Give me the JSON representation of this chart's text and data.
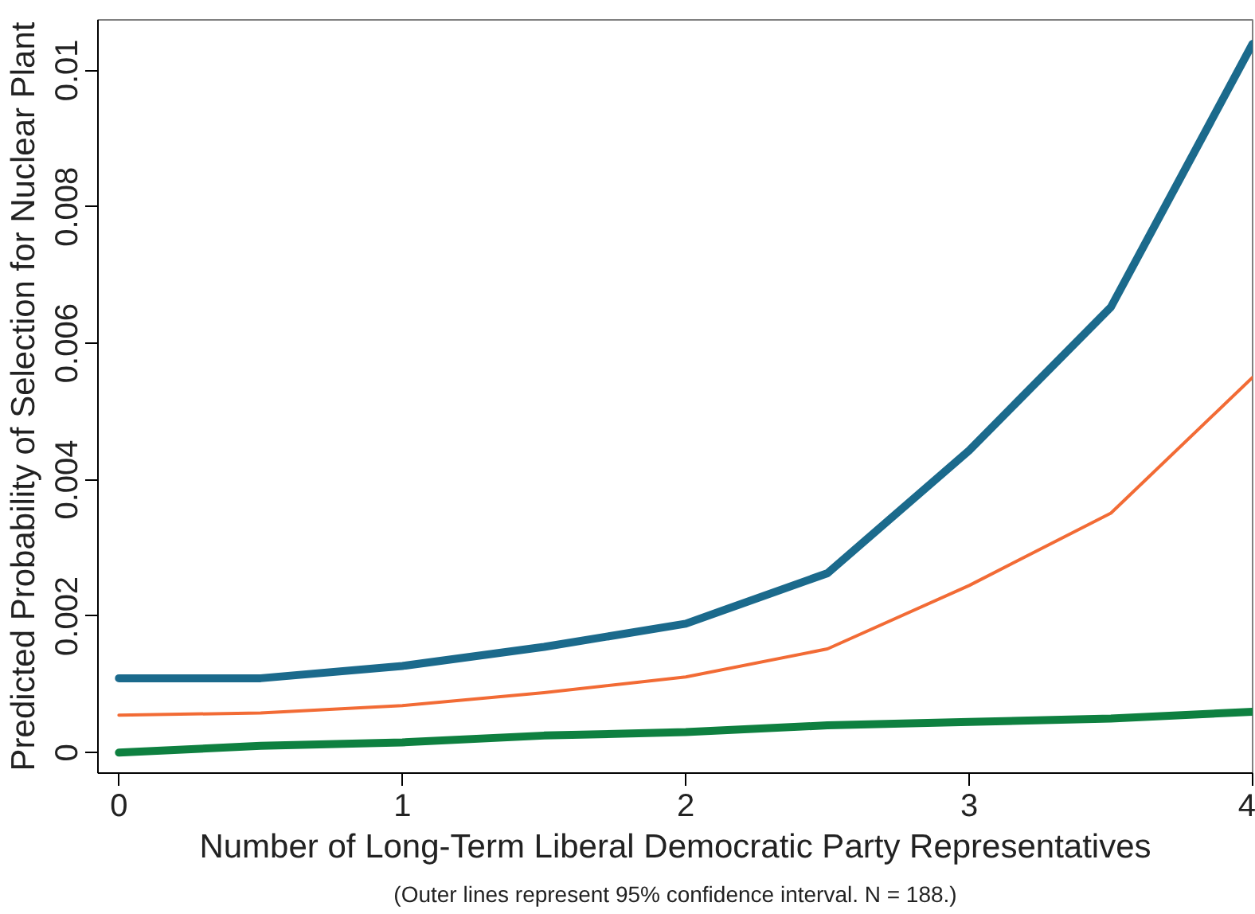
{
  "chart_data": {
    "type": "line",
    "xlabel": "Number of Long-Term Liberal Democratic Party Representatives",
    "ylabel": "Predicted Probability of Selection for Nuclear Plant",
    "annotations": [
      "(Outer lines represent 95% confidence interval. N = 188.)"
    ],
    "x": [
      0,
      0.5,
      1,
      1.5,
      2,
      2.5,
      3,
      3.5,
      4
    ],
    "series": [
      {
        "color": "#1b6a8c",
        "values": [
          0.00109,
          0.00109,
          0.00127,
          0.00155,
          0.00189,
          0.00263,
          0.00443,
          0.00653,
          0.01039
        ]
      },
      {
        "color": "#f26b35",
        "values": [
          0.00055,
          0.00058,
          0.00069,
          0.00088,
          0.00111,
          0.00152,
          0.00245,
          0.00351,
          0.0055
        ]
      },
      {
        "color": "#0e8040",
        "values": [
          0.0,
          0.0001,
          0.00015,
          0.00025,
          0.0003,
          0.0004,
          0.00045,
          0.0005,
          0.0006
        ]
      }
    ],
    "xlim": [
      -0.074,
      4.0
    ],
    "ylim": [
      -0.0003,
      0.01074
    ],
    "xticks": [
      0,
      1,
      2,
      3,
      4
    ],
    "yticks": [
      0,
      0.002,
      0.004,
      0.006,
      0.008,
      0.01
    ],
    "grid": false
  }
}
